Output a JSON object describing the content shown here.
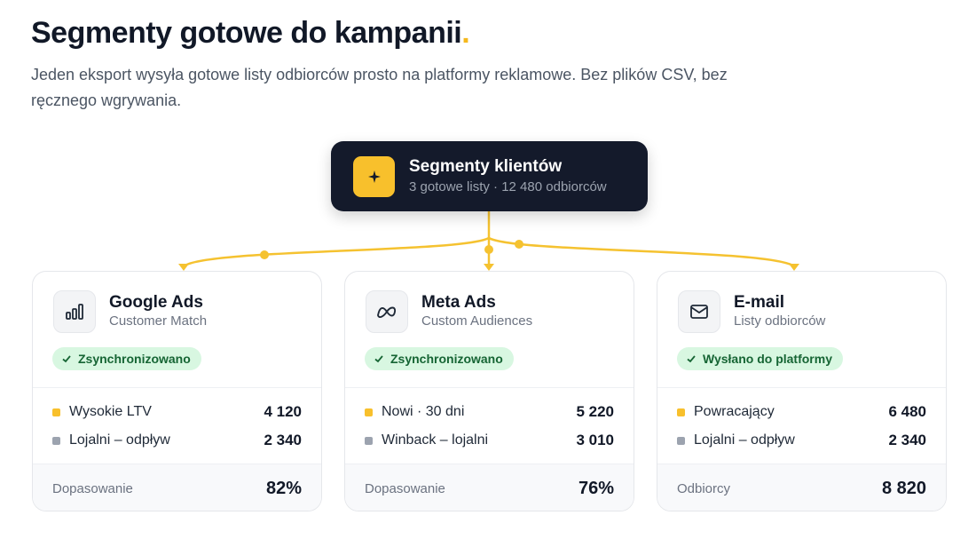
{
  "header": {
    "title": "Segmenty gotowe do kampanii",
    "title_accent": ".",
    "subtitle": "Jeden eksport wysyła gotowe listy odbiorców prosto na platformy reklamowe. Bez plików CSV, bez ręcznego wgrywania."
  },
  "hub": {
    "title": "Segmenty klientów",
    "subtitle": "3 gotowe listy · 12 480 odbiorców"
  },
  "cards": [
    {
      "name": "Google Ads",
      "subtitle": "Customer Match",
      "badge": "Zsynchronizowano",
      "segments": [
        {
          "label": "Wysokie LTV",
          "value": "4 120"
        },
        {
          "label": "Lojalni – odpływ",
          "value": "2 340"
        }
      ],
      "footer_label": "Dopasowanie",
      "footer_value": "82%"
    },
    {
      "name": "Meta Ads",
      "subtitle": "Custom Audiences",
      "badge": "Zsynchronizowano",
      "segments": [
        {
          "label": "Nowi · 30 dni",
          "value": "5 220"
        },
        {
          "label": "Winback – lojalni",
          "value": "3 010"
        }
      ],
      "footer_label": "Dopasowanie",
      "footer_value": "76%"
    },
    {
      "name": "E-mail",
      "subtitle": "Listy odbiorców",
      "badge": "Wysłano do platformy",
      "segments": [
        {
          "label": "Powracający",
          "value": "6 480"
        },
        {
          "label": "Lojalni – odpływ",
          "value": "2 340"
        }
      ],
      "footer_label": "Odbiorcy",
      "footer_value": "8 820"
    }
  ]
}
